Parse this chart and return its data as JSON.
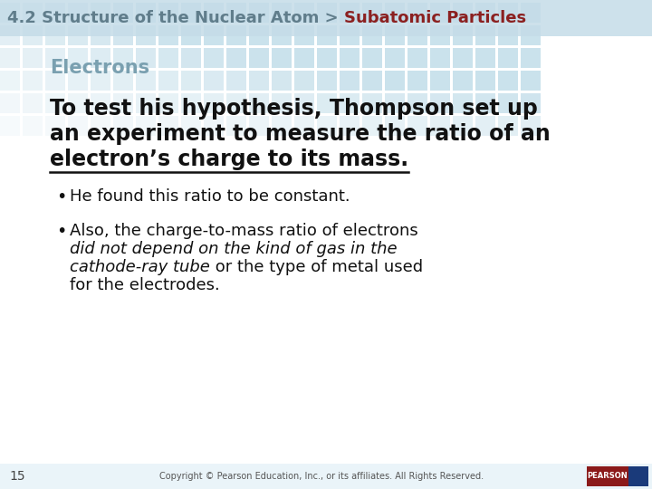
{
  "header_text": "4.2 Structure of the Nuclear Atom > ",
  "header_highlight": "Subatomic Particles",
  "header_color": "#607d8b",
  "header_highlight_color": "#8b2020",
  "section_title": "Electrons",
  "section_title_color": "#7aa0b0",
  "main_line1": "To test his hypothesis, Thompson set up",
  "main_line2": "an experiment to measure the ratio of an",
  "main_line3": "electron’s charge to its mass.",
  "bullet1": "He found this ratio to be constant.",
  "bullet2_line1": "Also, the charge-to-mass ratio of electrons",
  "bullet2_line2_italic": "did not depend on the kind of gas in the",
  "bullet2_line3_italic": "cathode-ray tube",
  "bullet2_line3_normal": " or the type of metal used",
  "bullet2_line4": "for the electrodes.",
  "page_number": "15",
  "copyright": "Copyright © Pearson Education, Inc., or its affiliates. All Rights Reserved.",
  "bg_color": "#ffffff",
  "tile_color": "#a8cfe0",
  "header_bg": "#c5dce8",
  "footer_bg": "#ddeef5",
  "text_color": "#111111",
  "header_fs": 13,
  "section_fs": 15,
  "main_fs": 17,
  "bullet_fs": 13,
  "footer_fs": 7
}
